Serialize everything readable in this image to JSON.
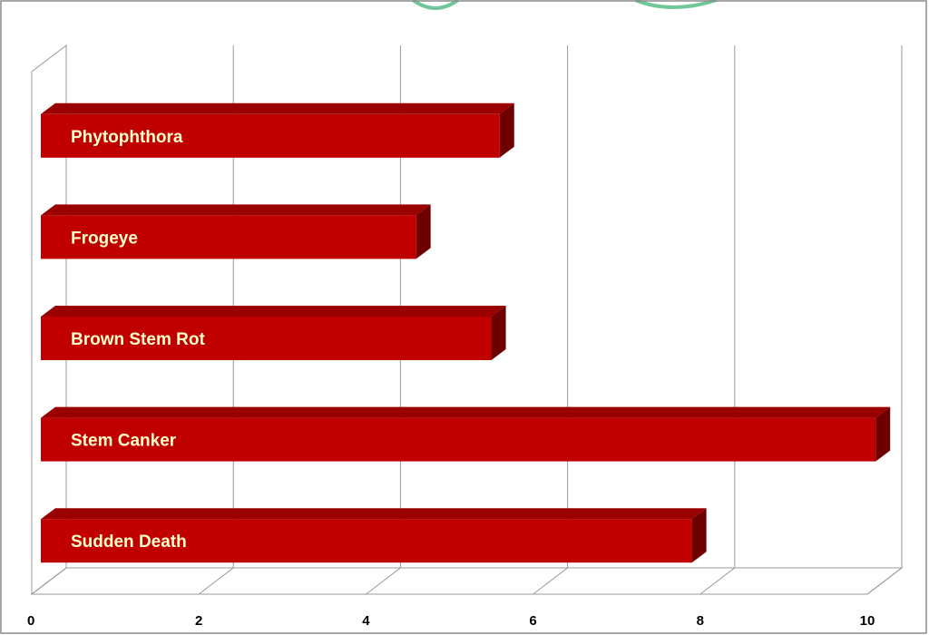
{
  "chart_data": {
    "type": "bar",
    "orientation": "horizontal",
    "three_d": true,
    "categories": [
      "Phytophthora",
      "Frogeye",
      "Brown Stem Rot",
      "Stem Canker",
      "Sudden Death"
    ],
    "values": [
      5.6,
      4.6,
      5.5,
      10.1,
      7.9
    ],
    "xlim": [
      0,
      10
    ],
    "xticks": [
      "0",
      "2",
      "4",
      "6",
      "8",
      "10"
    ],
    "grid": true,
    "legend": "none",
    "labels_inside_bars": true
  },
  "colors": {
    "bar_front": "#c00000",
    "bar_top": "#9a0000",
    "bar_side": "#6e0000",
    "label_text": "#ffffcc",
    "grid": "#999999"
  }
}
